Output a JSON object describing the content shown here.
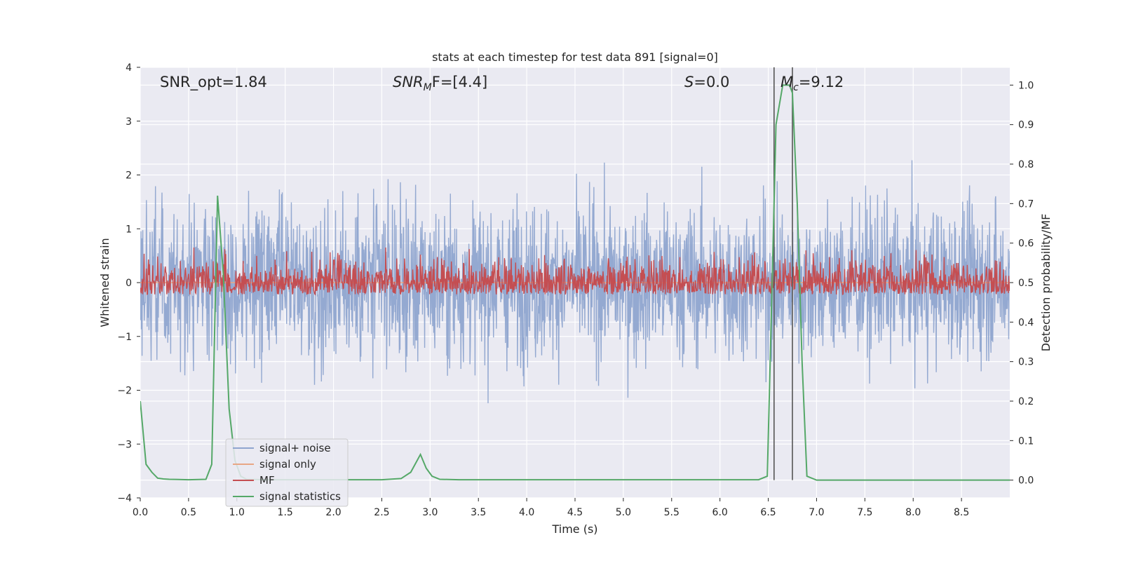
{
  "chart_data": {
    "type": "line",
    "title": "stats at each timestep for test data 891 [signal=0]",
    "xlabel": "Time (s)",
    "ylabel": "Whitened strain",
    "y2label": "Detection probability/MF",
    "xlim": [
      0.0,
      9.0
    ],
    "ylim": [
      -4.0,
      4.0
    ],
    "y2lim": [
      -0.045,
      1.045
    ],
    "xticks": [
      "0.0",
      "0.5",
      "1.0",
      "1.5",
      "2.0",
      "2.5",
      "3.0",
      "3.5",
      "4.0",
      "4.5",
      "5.0",
      "5.5",
      "6.0",
      "6.5",
      "7.0",
      "7.5",
      "8.0",
      "8.5"
    ],
    "yticks": [
      "4",
      "3",
      "2",
      "1",
      "0",
      "−1",
      "−2",
      "−3",
      "−4"
    ],
    "y2ticks": [
      "1.0",
      "0.9",
      "0.8",
      "0.7",
      "0.6",
      "0.5",
      "0.4",
      "0.3",
      "0.2",
      "0.1",
      "0.0"
    ],
    "grid": true,
    "legend_position": "lower-left",
    "annotations": {
      "snr_opt": "SNR_opt=1.84",
      "snr_mf_main": "SNR",
      "snr_mf_sub": "M",
      "snr_mf_rest": "F=[4.4]",
      "s_main": "S",
      "s_rest": "=0.0",
      "mc_main": "M",
      "mc_sub": "c",
      "mc_rest": "=9.12"
    },
    "vlines": [
      6.56,
      6.75
    ],
    "series": [
      {
        "name": "signal+ noise",
        "color": "#8fa5cf",
        "noise_amplitude": 3.0
      },
      {
        "name": "signal only",
        "color": "#e8a785",
        "value": 0.0
      },
      {
        "name": "MF",
        "color": "#c44e52",
        "y2_range": [
          0.47,
          0.6
        ]
      },
      {
        "name": "signal statistics",
        "color": "#55a868",
        "x": [
          0.0,
          0.06,
          0.12,
          0.18,
          0.24,
          0.3,
          0.5,
          0.68,
          0.74,
          0.8,
          0.86,
          0.92,
          0.98,
          1.04,
          1.1,
          1.3,
          2.0,
          2.5,
          2.7,
          2.8,
          2.9,
          2.96,
          3.02,
          3.1,
          3.3,
          5.0,
          6.4,
          6.49,
          6.53,
          6.58,
          6.65,
          6.72,
          6.75,
          6.8,
          6.85,
          6.9,
          7.0,
          9.0
        ],
        "y": [
          0.2,
          0.04,
          0.02,
          0.005,
          0.003,
          0.002,
          0.001,
          0.002,
          0.04,
          0.72,
          0.52,
          0.18,
          0.05,
          0.01,
          0.002,
          0.001,
          0.001,
          0.001,
          0.004,
          0.02,
          0.065,
          0.03,
          0.01,
          0.002,
          0.001,
          0.001,
          0.001,
          0.01,
          0.4,
          0.9,
          1.0,
          1.0,
          0.98,
          0.7,
          0.3,
          0.01,
          0.0,
          0.0
        ]
      }
    ]
  }
}
